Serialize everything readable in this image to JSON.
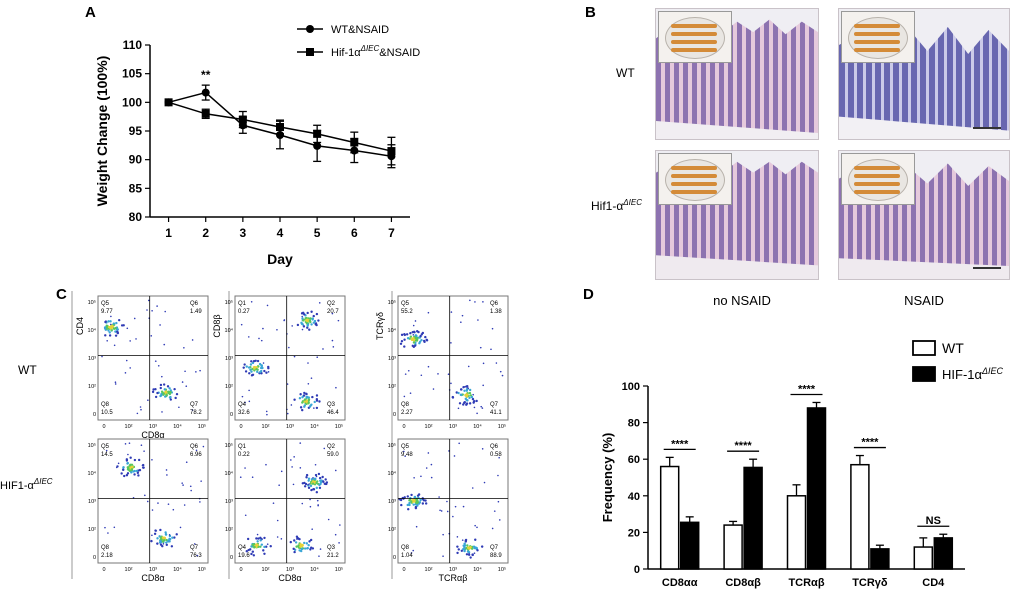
{
  "panels": {
    "a": "A",
    "b": "B",
    "c": "C",
    "d": "D"
  },
  "chart_data": [
    {
      "id": "A",
      "type": "line",
      "xlabel": "Day",
      "ylabel": "Weight Change (100%)",
      "ylim": [
        80,
        110
      ],
      "yticks": [
        80,
        85,
        90,
        95,
        100,
        105,
        110
      ],
      "x": [
        1,
        2,
        3,
        4,
        5,
        6,
        7
      ],
      "series": [
        {
          "name_base": "WT&NSAID",
          "name_sup": "",
          "name_suffix": "",
          "marker": "circle",
          "values": [
            100,
            101.7,
            96,
            94.3,
            92.4,
            91.6,
            90.6
          ],
          "errors": [
            0,
            1.3,
            1.4,
            2.4,
            2.7,
            2.1,
            2.0
          ]
        },
        {
          "name_base": "Hif-1α",
          "name_sup": "ΔIEC",
          "name_suffix": "&NSAID",
          "marker": "square",
          "values": [
            100,
            98,
            97,
            95.7,
            94.5,
            93,
            91.5
          ],
          "errors": [
            0,
            0.8,
            1.4,
            1.2,
            1.5,
            1.8,
            2.4
          ]
        }
      ],
      "annotations": [
        {
          "text": "**",
          "x": 2
        }
      ]
    },
    {
      "id": "D",
      "type": "bar",
      "ylabel": "Frequency (%)",
      "ylim": [
        0,
        100
      ],
      "yticks": [
        0,
        20,
        40,
        60,
        80,
        100
      ],
      "categories": [
        "CD8αα",
        "CD8αβ",
        "TCRαβ",
        "TCRγδ",
        "CD4"
      ],
      "series": [
        {
          "name": "WT",
          "values": [
            56,
            24,
            40,
            57,
            12
          ],
          "errors": [
            5,
            2,
            6,
            5,
            5
          ]
        },
        {
          "name_base": "HIF-1α",
          "name_sup": "ΔIEC",
          "values": [
            25.5,
            55.5,
            88,
            11,
            17
          ],
          "errors": [
            3,
            4.5,
            3,
            2,
            2
          ]
        }
      ],
      "significance": [
        "****",
        "****",
        "****",
        "****",
        "NS"
      ]
    },
    {
      "id": "C",
      "type": "scatter",
      "plots": [
        {
          "id": "wt-cd4-cd8a",
          "row": "WT",
          "xlabel": "CD8α",
          "ylabel": "CD4",
          "quadrants": [
            {
              "name": "Q5",
              "value": "9.77"
            },
            {
              "name": "Q6",
              "value": "1.49"
            },
            {
              "name": "Q8",
              "value": "10.5"
            },
            {
              "name": "Q7",
              "value": "78.2"
            }
          ]
        },
        {
          "id": "wt-cd8b-cd8a",
          "row": "WT",
          "xlabel": "",
          "ylabel": "CD8β",
          "quadrants": [
            {
              "name": "Q1",
              "value": "0.27"
            },
            {
              "name": "Q2",
              "value": "20.7"
            },
            {
              "name": "Q4",
              "value": "32.6"
            },
            {
              "name": "Q3",
              "value": "46.4"
            }
          ]
        },
        {
          "id": "wt-tcrgd-tcrab",
          "row": "WT",
          "xlabel": "",
          "ylabel": "TCRγδ",
          "quadrants": [
            {
              "name": "Q5",
              "value": "55.2"
            },
            {
              "name": "Q6",
              "value": "1.38"
            },
            {
              "name": "Q8",
              "value": "2.27"
            },
            {
              "name": "Q7",
              "value": "41.1"
            }
          ]
        },
        {
          "id": "ko-cd4-cd8a",
          "row": "HIF",
          "xlabel": "CD8α",
          "ylabel": "",
          "quadrants": [
            {
              "name": "Q5",
              "value": "14.5"
            },
            {
              "name": "Q6",
              "value": "6.96"
            },
            {
              "name": "Q8",
              "value": "2.18"
            },
            {
              "name": "Q7",
              "value": "76.3"
            }
          ]
        },
        {
          "id": "ko-cd8b-cd8a",
          "row": "HIF",
          "xlabel": "CD8α",
          "ylabel": "",
          "quadrants": [
            {
              "name": "Q1",
              "value": "0.22"
            },
            {
              "name": "Q2",
              "value": "59.0"
            },
            {
              "name": "Q4",
              "value": "19.6"
            },
            {
              "name": "Q3",
              "value": "21.2"
            }
          ]
        },
        {
          "id": "ko-tcrgd-tcrab",
          "row": "HIF",
          "xlabel": "TCRαβ",
          "ylabel": "",
          "quadrants": [
            {
              "name": "Q5",
              "value": "9.48"
            },
            {
              "name": "Q6",
              "value": "0.58"
            },
            {
              "name": "Q8",
              "value": "1.04"
            },
            {
              "name": "Q7",
              "value": "88.9"
            }
          ]
        }
      ],
      "tick_labels": [
        "0",
        "10²",
        "10³",
        "10⁴",
        "10⁵"
      ],
      "tick_labels_y": [
        "0",
        "10²",
        "10³",
        "10⁴",
        "10⁵"
      ]
    }
  ],
  "panel_b": {
    "col_no_nsaid": "no NSAID",
    "col_nsaid": "NSAID",
    "row_wt": "WT",
    "row_hif_base": "Hif1-α",
    "row_hif_sup": "ΔIEC"
  },
  "panel_c_rows": {
    "wt": "WT",
    "hif_base": "HIF1-α",
    "hif_sup": "ΔIEC"
  },
  "colors": {
    "bar_wt_fill": "#ffffff",
    "bar_ko_fill": "#000000",
    "axis": "#000000"
  }
}
